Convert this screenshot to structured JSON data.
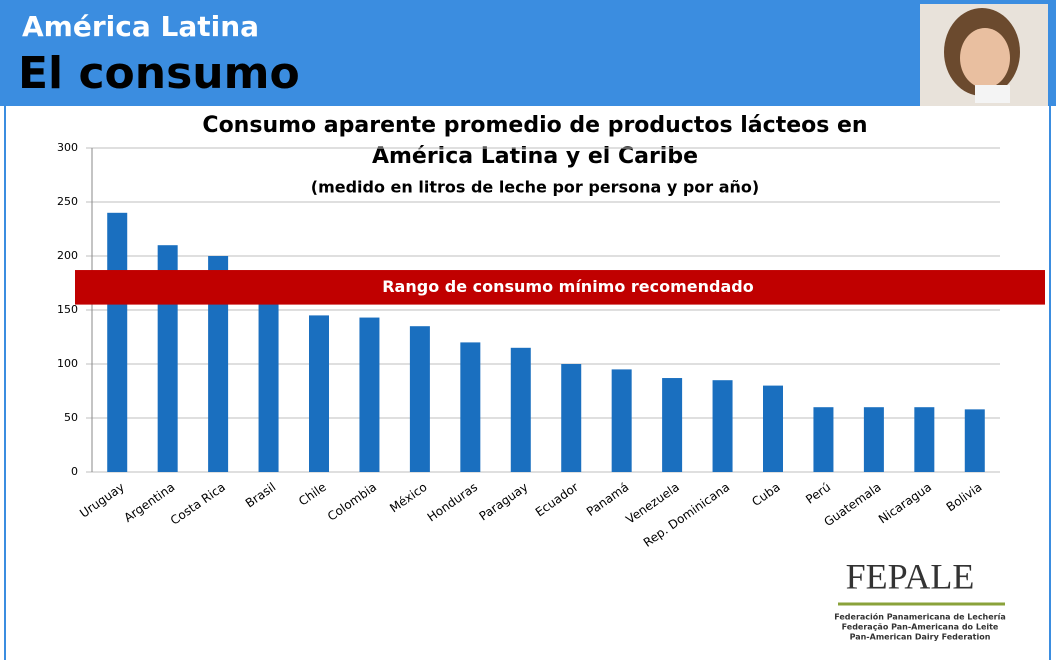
{
  "header": {
    "title": "América Latina",
    "subtitle": "El consumo"
  },
  "chart_data": {
    "type": "bar",
    "title": "Consumo aparente promedio de productos lácteos en",
    "title_line2": "América Latina y el Caribe",
    "subtitle": "(medido en litros de leche por persona y por año)",
    "categories": [
      "Uruguay",
      "Argentina",
      "Costa Rica",
      "Brasil",
      "Chile",
      "Colombia",
      "México",
      "Honduras",
      "Paraguay",
      "Ecuador",
      "Panamá",
      "Venezuela",
      "Rep. Dominicana",
      "Cuba",
      "Perú",
      "Guatemala",
      "Nicaragua",
      "Bolivia"
    ],
    "values": [
      240,
      210,
      200,
      165,
      145,
      143,
      135,
      120,
      115,
      100,
      95,
      87,
      85,
      80,
      60,
      60,
      60,
      58
    ],
    "color": "#1a6fbf",
    "ylim": [
      0,
      300
    ],
    "yticks": [
      0,
      50,
      100,
      150,
      200,
      250,
      300
    ],
    "grid": true,
    "band": {
      "label": "Rango de consumo mínimo recomendado",
      "from": 155,
      "to": 187,
      "color": "#c00000"
    }
  },
  "logo": {
    "name": "FEPALE",
    "lines": [
      "Federación Panamericana de Lechería",
      "Federação Pan-Americana do Leite",
      "Pan-American Dairy Federation"
    ]
  }
}
